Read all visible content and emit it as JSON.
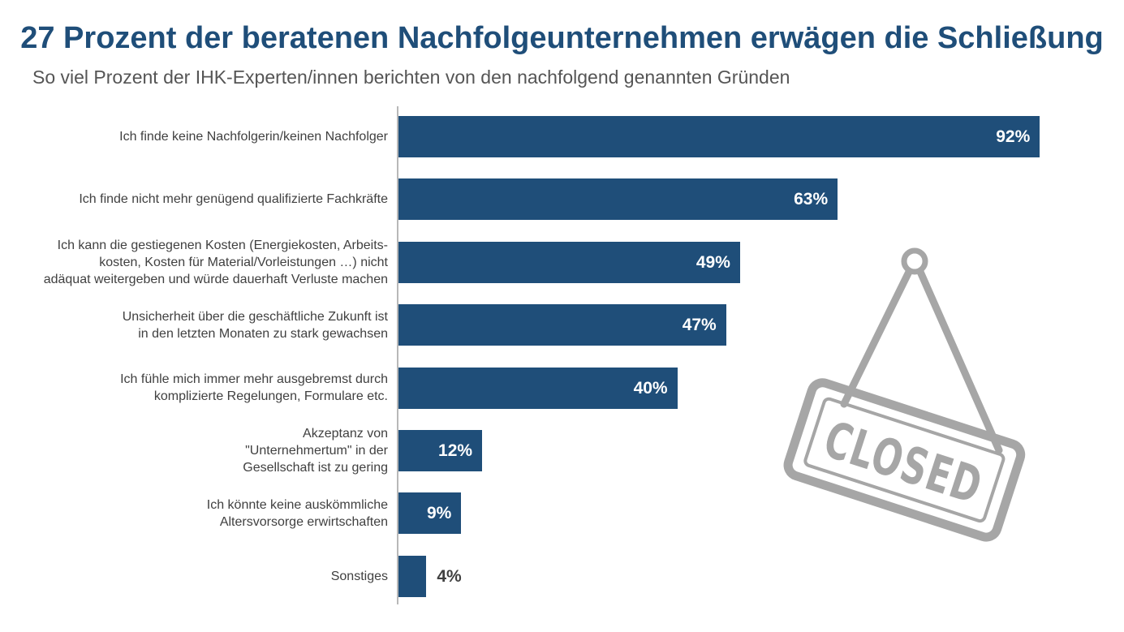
{
  "chart_data": {
    "type": "bar",
    "orientation": "horizontal",
    "title": "27 Prozent der beratenen Nachfolgeunternehmen erwägen die Schließung",
    "subtitle": "So viel Prozent der IHK-Experten/innen berichten von den nachfolgend genannten Gründen",
    "categories": [
      [
        "Ich finde keine Nachfolgerin/keinen Nachfolger"
      ],
      [
        "Ich finde nicht mehr genügend qualifizierte Fachkräfte"
      ],
      [
        "Ich kann die gestiegenen Kosten (Energiekosten, Arbeits-",
        "kosten, Kosten für Material/Vorleistungen …) nicht",
        "adäquat weitergeben und würde dauerhaft Verluste machen"
      ],
      [
        "Unsicherheit über die geschäftliche Zukunft ist",
        "in den letzten Monaten zu stark gewachsen"
      ],
      [
        "Ich fühle mich immer mehr ausgebremst durch",
        "komplizierte Regelungen, Formulare etc."
      ],
      [
        "Akzeptanz von",
        "\"Unternehmertum\" in der",
        "Gesellschaft ist zu gering"
      ],
      [
        "Ich könnte keine auskömmliche",
        "Altersvorsorge erwirtschaften"
      ],
      [
        "Sonstiges"
      ]
    ],
    "values": [
      92,
      63,
      49,
      47,
      40,
      12,
      9,
      4
    ],
    "value_labels": [
      "92%",
      "63%",
      "49%",
      "47%",
      "40%",
      "12%",
      "9%",
      "4%"
    ],
    "unit": "%",
    "xlim": [
      0,
      100
    ],
    "grid": false,
    "legend": "none",
    "bar_color": "#1f4e79"
  },
  "illustration": {
    "sign_text": "CLOSED",
    "icon": "closed-sign-icon",
    "color": "#a6a6a6"
  }
}
